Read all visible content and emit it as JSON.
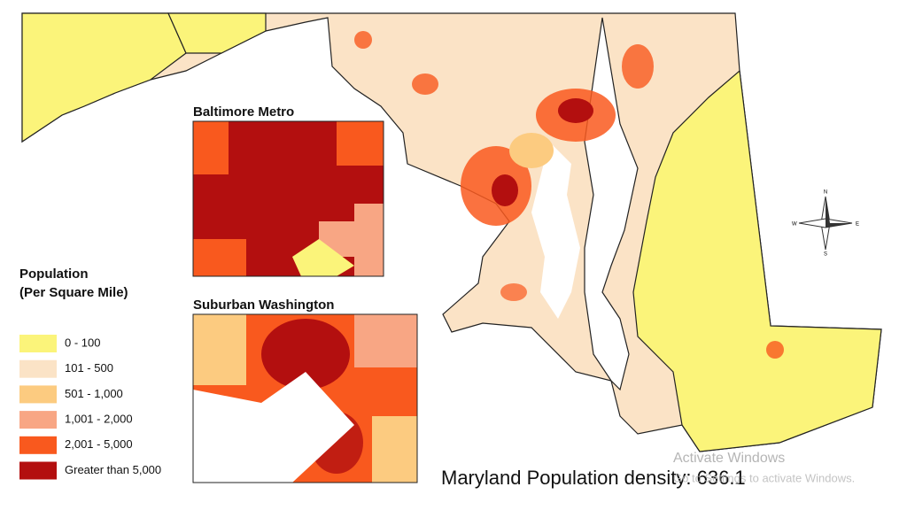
{
  "insets": [
    {
      "title": "Baltimore Metro"
    },
    {
      "title": "Suburban Washington"
    }
  ],
  "legend": {
    "title_lines": [
      "Population",
      "(Per Square Mile)"
    ],
    "items": [
      {
        "label": "0 - 100",
        "color": "#fbf47a"
      },
      {
        "label": "101 - 500",
        "color": "#fbe3c6"
      },
      {
        "label": "501 - 1,000",
        "color": "#fccb80"
      },
      {
        "label": "1,001 - 2,000",
        "color": "#f8a684"
      },
      {
        "label": "2,001 - 5,000",
        "color": "#f9591e"
      },
      {
        "label": "Greater than 5,000",
        "color": "#b30f0f"
      }
    ]
  },
  "caption": "Maryland Population density: 636.1",
  "compass": {
    "n": "N",
    "s": "S",
    "e": "E",
    "w": "W"
  },
  "watermark": {
    "line1": "Activate Windows",
    "line2": "Go to Settings to activate Windows."
  }
}
